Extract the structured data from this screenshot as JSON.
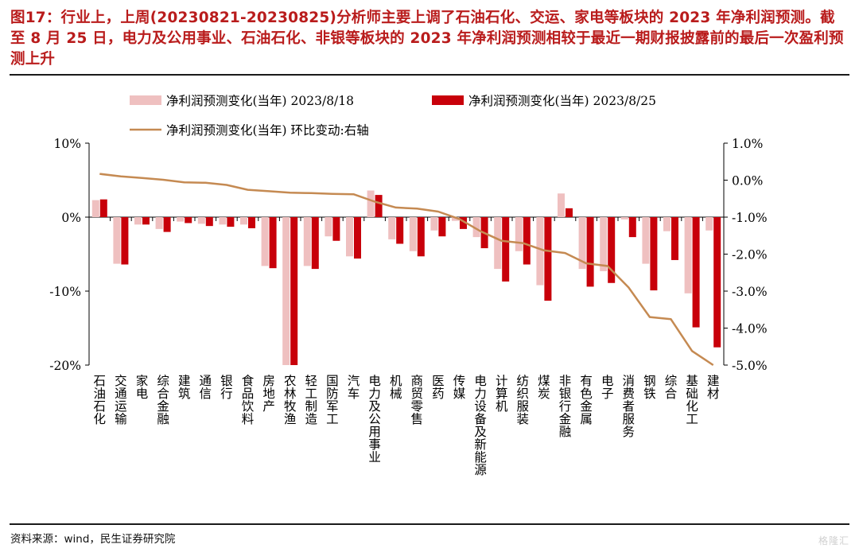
{
  "header": {
    "title": "图17：行业上，上周(20230821-20230825)分析师主要上调了石油石化、交运、家电等板块的 2023 年净利润预测。截至 8 月 25 日，电力及公用事业、石油石化、非银等板块的 2023 年净利润预测相较于最近一期财报披露前的最后一次盈利预测上升"
  },
  "footer": {
    "source": "资料来源：wind，民生证券研究院",
    "watermark": "格隆汇"
  },
  "colors": {
    "series_1": "#efc0c0",
    "series_2": "#c8000a",
    "line": "#c58a52"
  },
  "chart_data": {
    "type": "bar",
    "legend": [
      "净利润预测变化(当年) 2023/8/18",
      "净利润预测变化(当年) 2023/8/25",
      "净利润预测变化(当年) 环比变动:右轴"
    ],
    "legend_position": "top",
    "categories": [
      "石油石化",
      "交通运输",
      "家电",
      "综合金融",
      "建筑",
      "通信",
      "银行",
      "食品饮料",
      "房地产",
      "农林牧渔",
      "轻工制造",
      "国防军工",
      "汽车",
      "电力及公用事业",
      "机械",
      "商贸零售",
      "医药",
      "传媒",
      "电力设备及新能源",
      "计算机",
      "纺织服装",
      "煤炭",
      "非银行金融",
      "有色金属",
      "电子",
      "消费者服务",
      "钢铁",
      "综合",
      "基础化工",
      "建材"
    ],
    "series": [
      {
        "name": "净利润预测变化(当年) 2023/8/18",
        "axis": "left",
        "values": [
          2.3,
          -6.3,
          -1.0,
          -1.6,
          -0.6,
          -0.9,
          -1.0,
          -1.0,
          -6.6,
          -20.0,
          -6.6,
          -2.6,
          -5.3,
          3.6,
          -3.0,
          -4.6,
          -1.8,
          -0.5,
          -2.7,
          -7.0,
          -4.6,
          -9.2,
          3.2,
          -7.0,
          -7.3,
          -0.3,
          -6.3,
          -1.9,
          -10.3,
          -1.8
        ]
      },
      {
        "name": "净利润预测变化(当年) 2023/8/25",
        "axis": "left",
        "values": [
          2.4,
          -6.4,
          -1.0,
          -2.0,
          -0.8,
          -1.2,
          -1.3,
          -1.5,
          -6.9,
          -20.0,
          -7.0,
          -3.2,
          -5.6,
          3.0,
          -3.6,
          -5.3,
          -2.6,
          -1.6,
          -4.2,
          -8.7,
          -6.4,
          -11.3,
          1.2,
          -9.4,
          -8.9,
          -2.7,
          -9.9,
          -5.8,
          -14.9,
          -17.6
        ]
      },
      {
        "name": "净利润预测变化(当年) 环比变动:右轴",
        "axis": "right",
        "type": "line",
        "values": [
          0.17,
          0.1,
          0.06,
          0.01,
          -0.06,
          -0.07,
          -0.13,
          -0.26,
          -0.3,
          -0.34,
          -0.35,
          -0.37,
          -0.38,
          -0.58,
          -0.74,
          -0.77,
          -0.85,
          -1.05,
          -1.38,
          -1.64,
          -1.7,
          -1.9,
          -1.97,
          -2.25,
          -2.32,
          -2.9,
          -3.7,
          -3.76,
          -4.62,
          -5.0
        ]
      }
    ],
    "y_left": {
      "min": -20,
      "max": 10,
      "ticks": [
        10,
        0,
        -10,
        -20
      ],
      "tick_labels": [
        "10%",
        "0%",
        "-10%",
        "-20%"
      ]
    },
    "y_right": {
      "min": -5.0,
      "max": 1.0,
      "ticks": [
        1.0,
        0.0,
        -1.0,
        -2.0,
        -3.0,
        -4.0,
        -5.0
      ],
      "tick_labels": [
        "1.0%",
        "0.0%",
        "-1.0%",
        "-2.0%",
        "-3.0%",
        "-4.0%",
        "-5.0%"
      ]
    },
    "grid": false
  }
}
